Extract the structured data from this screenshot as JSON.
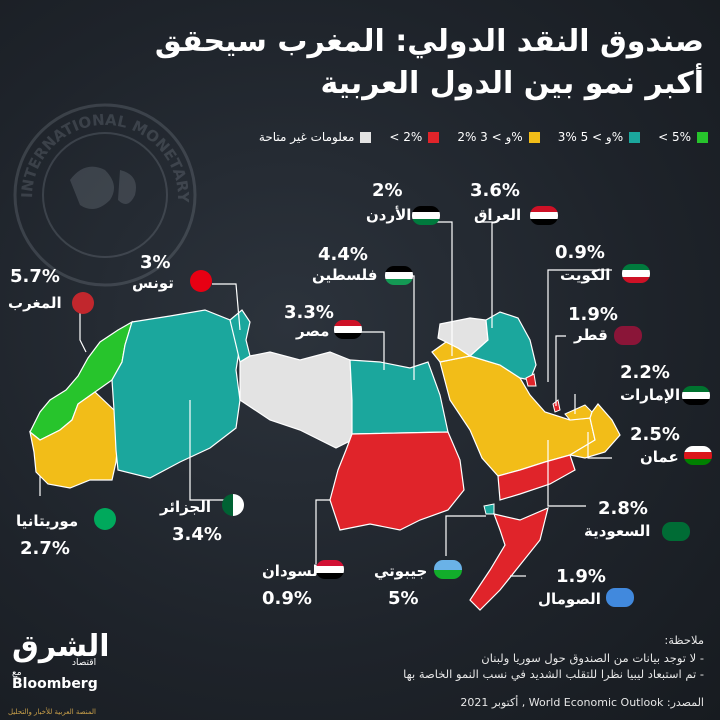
{
  "title": {
    "line1": "صندوق النقد الدولي: المغرب سيحقق",
    "line2": "أكبر نمو بين الدول العربية"
  },
  "legend": [
    {
      "label": "< 5%",
      "color": "#27c42c"
    },
    {
      "label": "3% و > 5%",
      "color": "#1ba79d"
    },
    {
      "label": "2% و > 3%",
      "color": "#f2bd18"
    },
    {
      "label": "< 2%",
      "color": "#e0242a"
    },
    {
      "label": "معلومات غير متاحة",
      "color": "#e3e3e3"
    }
  ],
  "countries": {
    "iraq": {
      "name": "العراق",
      "value": "3.6%"
    },
    "jordan": {
      "name": "الأردن",
      "value": "2%"
    },
    "kuwait": {
      "name": "الكويت",
      "value": "0.9%"
    },
    "palestine": {
      "name": "فلسطين",
      "value": "4.4%"
    },
    "tunisia": {
      "name": "تونس",
      "value": "3%"
    },
    "morocco": {
      "name": "المغرب",
      "value": "5.7%"
    },
    "egypt": {
      "name": "مصر",
      "value": "3.3%"
    },
    "qatar": {
      "name": "قطر",
      "value": "1.9%"
    },
    "uae": {
      "name": "الإمارات",
      "value": "2.2%"
    },
    "oman": {
      "name": "عمان",
      "value": "2.5%"
    },
    "saudi": {
      "name": "السعودية",
      "value": "2.8%"
    },
    "somalia": {
      "name": "الصومال",
      "value": "1.9%"
    },
    "djibouti": {
      "name": "جيبوتي",
      "value": "5%"
    },
    "sudan": {
      "name": "السودان",
      "value": "0.9%"
    },
    "algeria": {
      "name": "الجزائر",
      "value": "3.4%"
    },
    "mauritania": {
      "name": "موريتانيا",
      "value": "2.7%"
    }
  },
  "notes": {
    "heading": "ملاحظة:",
    "line1": "- لا توجد بيانات من الصندوق حول سوريا ولبنان",
    "line2": "- تم استبعاد ليبيا نظرا للتقلب الشديد في نسب النمو الخاصة بها",
    "source": "المصدر: World Economic Outlook , أكتوبر 2021"
  },
  "brand": {
    "name": "الشرق",
    "sub": "اقتصاد",
    "partner": "Bloomberg",
    "with": "مع",
    "tagline": "المنصة العربية للأخبار والتحليل"
  },
  "watermark": {
    "text": "INTERNATIONAL MONETARY FUND"
  }
}
